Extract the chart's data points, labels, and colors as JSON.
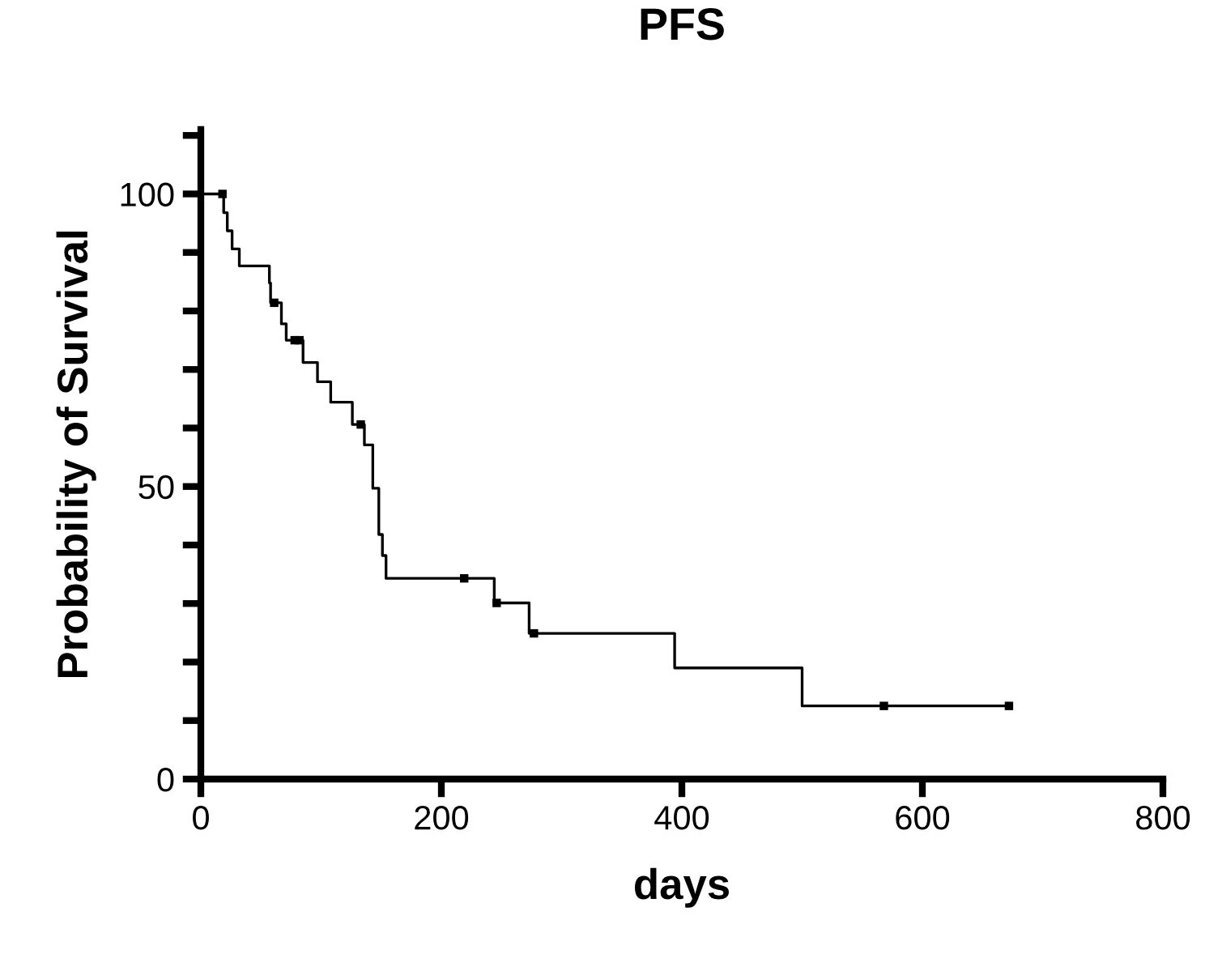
{
  "chart_data": {
    "type": "step",
    "title": "PFS",
    "xlabel": "days",
    "ylabel": "Probability of Survival",
    "xlim": [
      0,
      800
    ],
    "ylim": [
      0,
      111
    ],
    "xticks": [
      0,
      200,
      400,
      600,
      800
    ],
    "yticks": [
      0,
      {
        "value": 10,
        "label": null
      },
      {
        "value": 20,
        "label": null
      },
      {
        "value": 30,
        "label": null
      },
      {
        "value": 40,
        "label": null
      },
      50,
      {
        "value": 60,
        "label": null
      },
      {
        "value": 70,
        "label": null
      },
      {
        "value": 80,
        "label": null
      },
      {
        "value": 90,
        "label": null
      },
      100,
      {
        "value": 110,
        "label": null
      }
    ],
    "grid": false,
    "legend": false,
    "series": [
      {
        "color": "#000000",
        "marker": "none",
        "line_style": "solid",
        "x": [
          0,
          19,
          22,
          26,
          32,
          57,
          58,
          61,
          67,
          71,
          85,
          97,
          108,
          126,
          136,
          143,
          148,
          151,
          154,
          244,
          273,
          394,
          500,
          672
        ],
        "values": [
          100,
          96.8,
          93.7,
          90.6,
          87.7,
          84.8,
          81.4,
          81.4,
          77.8,
          75,
          71.2,
          67.9,
          64.4,
          60.6,
          57.1,
          49.7,
          41.8,
          38.2,
          34.3,
          30.1,
          24.9,
          19,
          12.5,
          12.5
        ]
      },
      {
        "type": "scatter",
        "color": "#000000",
        "marker": "square",
        "x": [
          18,
          61,
          78,
          82,
          133,
          219,
          246,
          277,
          568,
          672
        ],
        "values": [
          100,
          81.4,
          75,
          75,
          60.6,
          34.3,
          30.1,
          24.9,
          12.5,
          12.5
        ]
      }
    ]
  }
}
